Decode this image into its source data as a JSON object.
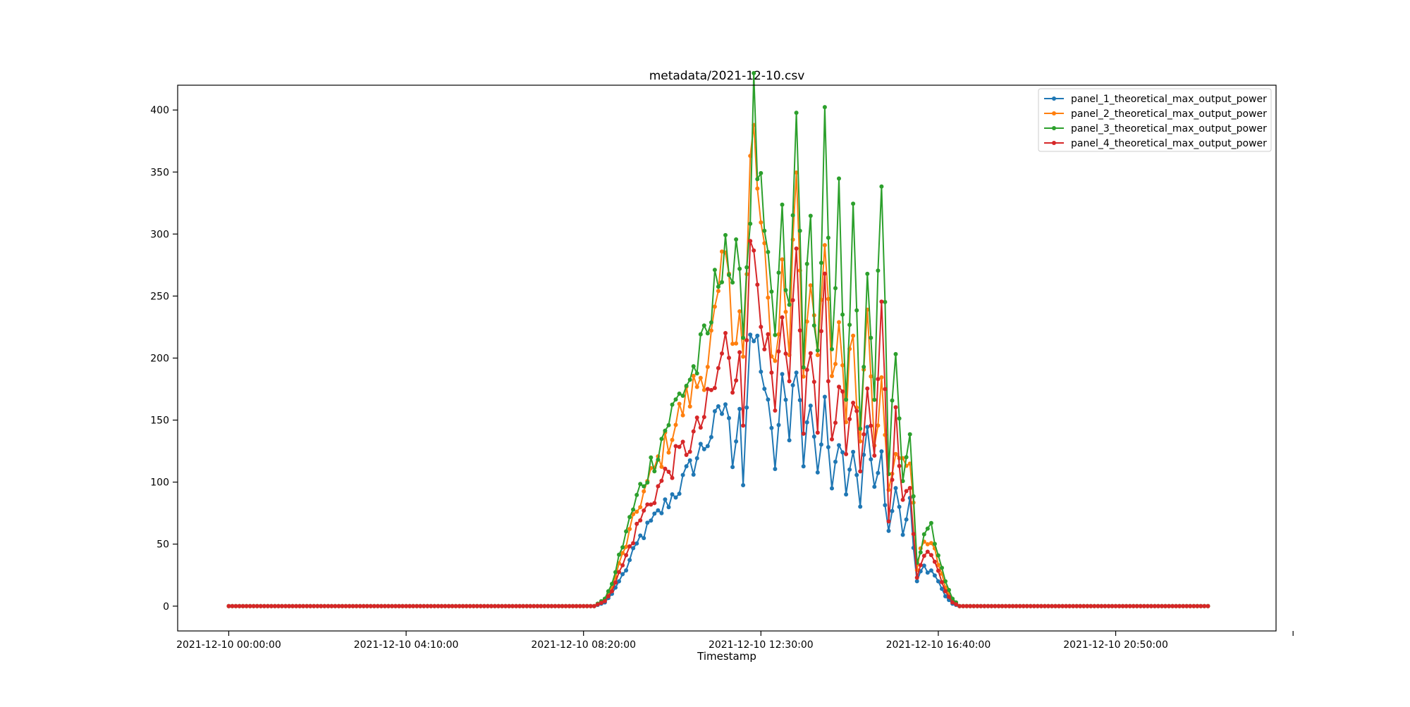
{
  "chart_data": {
    "type": "line",
    "title": "metadata/2021-12-10.csv",
    "xlabel": "Timestamp",
    "ylabel": "",
    "x_tick_labels": [
      "2021-12-10 00:00:00",
      "2021-12-10 04:10:00",
      "2021-12-10 08:20:00",
      "2021-12-10 12:30:00",
      "2021-12-10 16:40:00",
      "2021-12-10 20:50:00"
    ],
    "y_ticks": [
      0,
      50,
      100,
      150,
      200,
      250,
      300,
      350,
      400
    ],
    "ylim": [
      -20,
      420
    ],
    "x_range_hours": [
      -1.2,
      24.6
    ],
    "grid": false,
    "legend_position": "top-right",
    "marker": "circle",
    "series": [
      {
        "name": "panel_1_theoretical_max_output_power",
        "color": "#1f77b4",
        "points": [
          [
            "00:00",
            0
          ],
          [
            "08:35",
            0
          ],
          [
            "08:50",
            3
          ],
          [
            "09:00",
            10
          ],
          [
            "09:20",
            30
          ],
          [
            "09:40",
            55
          ],
          [
            "10:00",
            70
          ],
          [
            "10:20",
            85
          ],
          [
            "10:40",
            100
          ],
          [
            "11:00",
            120
          ],
          [
            "11:15",
            135
          ],
          [
            "11:30",
            150
          ],
          [
            "11:40",
            165
          ],
          [
            "11:50",
            120
          ],
          [
            "12:00",
            165
          ],
          [
            "12:05",
            100
          ],
          [
            "12:10",
            160
          ],
          [
            "12:15",
            200
          ],
          [
            "12:20",
            215
          ],
          [
            "12:30",
            200
          ],
          [
            "12:40",
            155
          ],
          [
            "12:50",
            115
          ],
          [
            "13:00",
            175
          ],
          [
            "13:10",
            145
          ],
          [
            "13:20",
            205
          ],
          [
            "13:30",
            115
          ],
          [
            "13:40",
            170
          ],
          [
            "13:50",
            110
          ],
          [
            "14:00",
            155
          ],
          [
            "14:10",
            105
          ],
          [
            "14:20",
            140
          ],
          [
            "14:30",
            100
          ],
          [
            "14:40",
            130
          ],
          [
            "14:50",
            85
          ],
          [
            "15:00",
            145
          ],
          [
            "15:10",
            90
          ],
          [
            "15:20",
            120
          ],
          [
            "15:30",
            60
          ],
          [
            "15:40",
            95
          ],
          [
            "15:50",
            60
          ],
          [
            "16:00",
            80
          ],
          [
            "16:10",
            20
          ],
          [
            "16:20",
            32
          ],
          [
            "16:30",
            28
          ],
          [
            "16:40",
            20
          ],
          [
            "16:50",
            8
          ],
          [
            "17:00",
            2
          ],
          [
            "17:10",
            0
          ],
          [
            "23:00",
            0
          ]
        ]
      },
      {
        "name": "panel_2_theoretical_max_output_power",
        "color": "#ff7f0e",
        "points": [
          [
            "00:00",
            0
          ],
          [
            "08:35",
            0
          ],
          [
            "08:50",
            5
          ],
          [
            "09:00",
            15
          ],
          [
            "09:20",
            50
          ],
          [
            "09:40",
            85
          ],
          [
            "10:00",
            110
          ],
          [
            "10:20",
            135
          ],
          [
            "10:40",
            160
          ],
          [
            "11:00",
            180
          ],
          [
            "11:15",
            200
          ],
          [
            "11:30",
            240
          ],
          [
            "11:40",
            280
          ],
          [
            "11:50",
            220
          ],
          [
            "12:00",
            250
          ],
          [
            "12:05",
            200
          ],
          [
            "12:10",
            260
          ],
          [
            "12:15",
            350
          ],
          [
            "12:20",
            375
          ],
          [
            "12:30",
            300
          ],
          [
            "12:40",
            240
          ],
          [
            "12:50",
            195
          ],
          [
            "13:00",
            270
          ],
          [
            "13:10",
            210
          ],
          [
            "13:20",
            360
          ],
          [
            "13:30",
            195
          ],
          [
            "13:40",
            280
          ],
          [
            "13:50",
            185
          ],
          [
            "14:00",
            290
          ],
          [
            "14:10",
            175
          ],
          [
            "14:20",
            230
          ],
          [
            "14:30",
            160
          ],
          [
            "14:40",
            225
          ],
          [
            "14:50",
            130
          ],
          [
            "15:00",
            260
          ],
          [
            "15:10",
            140
          ],
          [
            "15:20",
            175
          ],
          [
            "15:30",
            90
          ],
          [
            "15:40",
            130
          ],
          [
            "15:50",
            110
          ],
          [
            "16:00",
            125
          ],
          [
            "16:10",
            30
          ],
          [
            "16:20",
            55
          ],
          [
            "16:30",
            50
          ],
          [
            "16:40",
            35
          ],
          [
            "16:50",
            15
          ],
          [
            "17:00",
            5
          ],
          [
            "17:10",
            0
          ],
          [
            "23:00",
            0
          ]
        ]
      },
      {
        "name": "panel_3_theoretical_max_output_power",
        "color": "#2ca02c",
        "points": [
          [
            "00:00",
            0
          ],
          [
            "08:35",
            0
          ],
          [
            "08:50",
            6
          ],
          [
            "09:00",
            18
          ],
          [
            "09:20",
            60
          ],
          [
            "09:40",
            95
          ],
          [
            "10:00",
            120
          ],
          [
            "10:20",
            150
          ],
          [
            "10:40",
            175
          ],
          [
            "11:00",
            195
          ],
          [
            "11:15",
            215
          ],
          [
            "11:30",
            270
          ],
          [
            "11:40",
            305
          ],
          [
            "11:50",
            240
          ],
          [
            "12:00",
            300
          ],
          [
            "12:05",
            220
          ],
          [
            "12:10",
            280
          ],
          [
            "12:15",
            330
          ],
          [
            "12:20",
            398
          ],
          [
            "12:30",
            320
          ],
          [
            "12:40",
            260
          ],
          [
            "12:50",
            220
          ],
          [
            "13:00",
            300
          ],
          [
            "13:10",
            230
          ],
          [
            "13:20",
            388
          ],
          [
            "13:30",
            210
          ],
          [
            "13:40",
            300
          ],
          [
            "13:50",
            200
          ],
          [
            "14:00",
            378
          ],
          [
            "14:10",
            190
          ],
          [
            "14:20",
            320
          ],
          [
            "14:30",
            180
          ],
          [
            "14:40",
            300
          ],
          [
            "14:50",
            150
          ],
          [
            "15:00",
            250
          ],
          [
            "15:10",
            160
          ],
          [
            "15:20",
            360
          ],
          [
            "15:30",
            100
          ],
          [
            "15:40",
            215
          ],
          [
            "15:50",
            110
          ],
          [
            "16:00",
            143
          ],
          [
            "16:10",
            35
          ],
          [
            "16:20",
            60
          ],
          [
            "16:30",
            62
          ],
          [
            "16:40",
            45
          ],
          [
            "16:50",
            20
          ],
          [
            "17:00",
            6
          ],
          [
            "17:10",
            0
          ],
          [
            "23:00",
            0
          ]
        ]
      },
      {
        "name": "panel_4_theoretical_max_output_power",
        "color": "#d62728",
        "points": [
          [
            "00:00",
            0
          ],
          [
            "08:35",
            0
          ],
          [
            "08:50",
            4
          ],
          [
            "09:00",
            12
          ],
          [
            "09:20",
            40
          ],
          [
            "09:40",
            70
          ],
          [
            "10:00",
            90
          ],
          [
            "10:20",
            110
          ],
          [
            "10:40",
            125
          ],
          [
            "11:00",
            140
          ],
          [
            "11:15",
            160
          ],
          [
            "11:30",
            185
          ],
          [
            "11:40",
            220
          ],
          [
            "11:50",
            165
          ],
          [
            "12:00",
            215
          ],
          [
            "12:05",
            160
          ],
          [
            "12:10",
            230
          ],
          [
            "12:15",
            275
          ],
          [
            "12:20",
            287
          ],
          [
            "12:30",
            250
          ],
          [
            "12:40",
            200
          ],
          [
            "12:50",
            155
          ],
          [
            "13:00",
            220
          ],
          [
            "13:10",
            170
          ],
          [
            "13:20",
            280
          ],
          [
            "13:30",
            150
          ],
          [
            "13:40",
            210
          ],
          [
            "13:50",
            140
          ],
          [
            "14:00",
            270
          ],
          [
            "14:10",
            130
          ],
          [
            "14:20",
            190
          ],
          [
            "14:30",
            125
          ],
          [
            "14:40",
            180
          ],
          [
            "14:50",
            110
          ],
          [
            "15:00",
            160
          ],
          [
            "15:10",
            115
          ],
          [
            "15:20",
            260
          ],
          [
            "15:30",
            75
          ],
          [
            "15:40",
            150
          ],
          [
            "15:50",
            80
          ],
          [
            "16:00",
            100
          ],
          [
            "16:10",
            25
          ],
          [
            "16:20",
            40
          ],
          [
            "16:30",
            45
          ],
          [
            "16:40",
            30
          ],
          [
            "16:50",
            12
          ],
          [
            "17:00",
            3
          ],
          [
            "17:10",
            0
          ],
          [
            "23:00",
            0
          ]
        ]
      }
    ]
  }
}
